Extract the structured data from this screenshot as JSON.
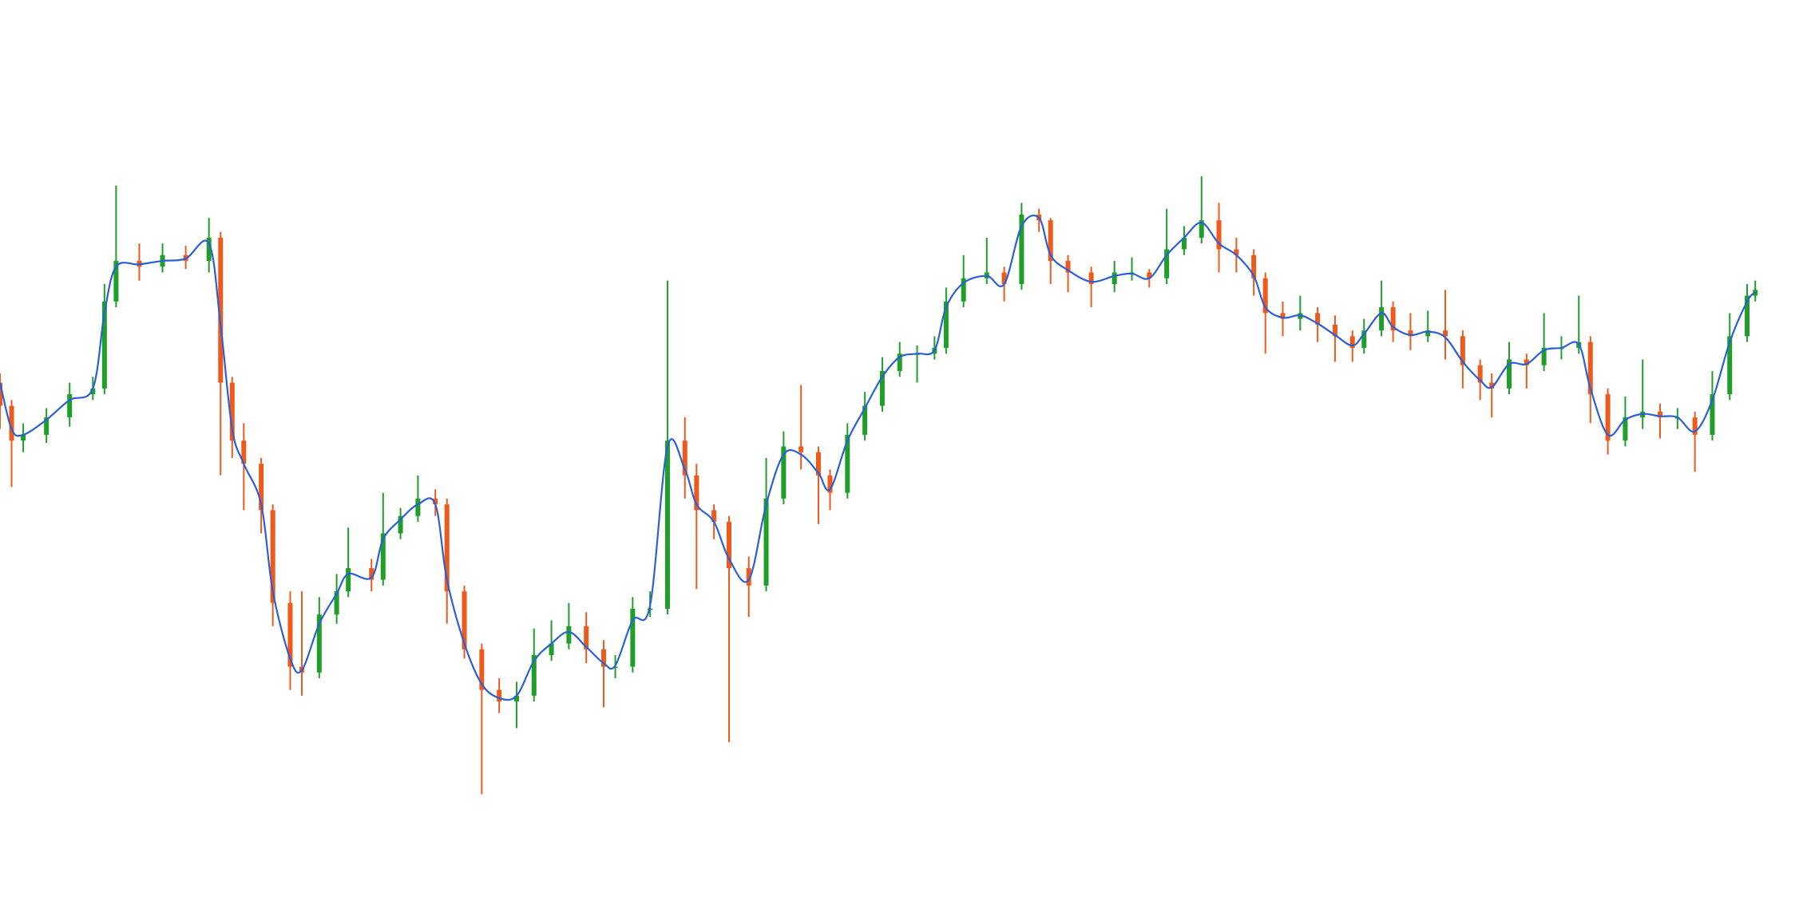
{
  "chart_data": {
    "type": "candlestick",
    "x": [
      0,
      10,
      20,
      40,
      60,
      80,
      90,
      100,
      120,
      140,
      160,
      180,
      190,
      200,
      210,
      225,
      235,
      250,
      260,
      275,
      290,
      300,
      320,
      330,
      345,
      360,
      375,
      385,
      400,
      415,
      430,
      445,
      460,
      475,
      490,
      505,
      520,
      530,
      545,
      560,
      575,
      590,
      600,
      615,
      628,
      645,
      660,
      675,
      690,
      705,
      715,
      730,
      745,
      760,
      775,
      790,
      805,
      815,
      830,
      850,
      865,
      880,
      895,
      905,
      920,
      940,
      960,
      975,
      990,
      1005,
      1020,
      1035,
      1050,
      1065,
      1080,
      1090,
      1105,
      1120,
      1135,
      1150,
      1165,
      1175,
      1190,
      1200,
      1215,
      1230,
      1245,
      1260,
      1275,
      1285,
      1300,
      1315,
      1330,
      1345,
      1360,
      1370,
      1385,
      1400,
      1415,
      1430,
      1445,
      1460,
      1475,
      1490,
      1505,
      1512
    ],
    "open": [
      470,
      450,
      420,
      425,
      440,
      460,
      465,
      540,
      575,
      570,
      580,
      575,
      595,
      470,
      420,
      400,
      360,
      280,
      225,
      220,
      270,
      290,
      310,
      300,
      340,
      355,
      370,
      365,
      290,
      240,
      205,
      195,
      200,
      235,
      245,
      260,
      240,
      225,
      225,
      275,
      275,
      420,
      390,
      360,
      350,
      310,
      295,
      370,
      415,
      410,
      390,
      375,
      425,
      450,
      480,
      495,
      495,
      500,
      540,
      560,
      565,
      555,
      615,
      610,
      575,
      565,
      555,
      565,
      565,
      560,
      585,
      595,
      610,
      585,
      580,
      560,
      530,
      525,
      530,
      520,
      510,
      500,
      515,
      535,
      515,
      510,
      515,
      510,
      485,
      470,
      465,
      490,
      485,
      500,
      500,
      505,
      460,
      420,
      440,
      445,
      440,
      440,
      425,
      460,
      510,
      545
    ],
    "high": [
      478,
      455,
      435,
      448,
      470,
      475,
      555,
      640,
      590,
      590,
      588,
      612,
      600,
      475,
      435,
      405,
      365,
      290,
      290,
      285,
      305,
      345,
      318,
      375,
      362,
      390,
      378,
      370,
      295,
      245,
      215,
      212,
      258,
      265,
      280,
      272,
      248,
      235,
      285,
      290,
      558,
      440,
      400,
      365,
      355,
      320,
      405,
      428,
      468,
      415,
      395,
      435,
      462,
      492,
      505,
      502,
      510,
      552,
      580,
      595,
      570,
      625,
      620,
      612,
      580,
      570,
      575,
      578,
      568,
      620,
      605,
      648,
      625,
      595,
      585,
      565,
      540,
      545,
      535,
      528,
      515,
      525,
      558,
      540,
      530,
      532,
      550,
      515,
      490,
      478,
      505,
      495,
      530,
      510,
      545,
      510,
      465,
      458,
      490,
      452,
      448,
      445,
      480,
      530,
      555,
      558
    ],
    "low": [
      430,
      380,
      410,
      418,
      432,
      455,
      460,
      535,
      558,
      565,
      568,
      565,
      390,
      405,
      360,
      340,
      260,
      205,
      200,
      215,
      262,
      285,
      290,
      295,
      335,
      350,
      355,
      262,
      232,
      115,
      185,
      172,
      195,
      230,
      240,
      228,
      190,
      215,
      220,
      268,
      270,
      370,
      292,
      335,
      160,
      268,
      290,
      365,
      395,
      348,
      360,
      370,
      420,
      445,
      475,
      470,
      490,
      495,
      535,
      555,
      540,
      550,
      600,
      555,
      548,
      535,
      548,
      558,
      552,
      555,
      580,
      590,
      565,
      565,
      545,
      495,
      510,
      515,
      505,
      488,
      488,
      495,
      510,
      505,
      498,
      505,
      490,
      465,
      455,
      440,
      460,
      465,
      480,
      490,
      495,
      435,
      408,
      415,
      430,
      422,
      430,
      393,
      420,
      455,
      505,
      540
    ],
    "close": [
      450,
      420,
      425,
      440,
      460,
      465,
      540,
      575,
      570,
      580,
      575,
      595,
      470,
      420,
      400,
      360,
      280,
      225,
      220,
      270,
      290,
      310,
      300,
      340,
      355,
      370,
      365,
      290,
      240,
      205,
      195,
      200,
      235,
      245,
      260,
      240,
      225,
      225,
      275,
      275,
      420,
      390,
      360,
      350,
      310,
      295,
      370,
      415,
      410,
      390,
      375,
      425,
      450,
      480,
      495,
      495,
      500,
      540,
      560,
      565,
      555,
      615,
      610,
      575,
      565,
      555,
      565,
      565,
      560,
      585,
      595,
      610,
      585,
      580,
      560,
      530,
      525,
      530,
      520,
      510,
      500,
      515,
      535,
      515,
      510,
      515,
      510,
      485,
      470,
      465,
      490,
      485,
      500,
      500,
      505,
      460,
      420,
      440,
      445,
      440,
      440,
      425,
      460,
      510,
      545,
      550
    ],
    "up_color": "#1f9e2a",
    "down_color": "#ee5a1c",
    "line": {
      "color": "#2b5fd9",
      "values": [
        470,
        430,
        425,
        438,
        455,
        465,
        530,
        570,
        572,
        575,
        577,
        590,
        520,
        430,
        400,
        365,
        290,
        232,
        222,
        262,
        288,
        305,
        302,
        335,
        352,
        365,
        365,
        300,
        245,
        210,
        198,
        200,
        230,
        245,
        255,
        242,
        228,
        226,
        265,
        278,
        415,
        395,
        365,
        350,
        318,
        300,
        365,
        408,
        408,
        392,
        378,
        420,
        448,
        475,
        492,
        495,
        498,
        535,
        556,
        562,
        555,
        605,
        612,
        580,
        567,
        557,
        562,
        564,
        560,
        580,
        595,
        608,
        590,
        580,
        562,
        535,
        526,
        528,
        521,
        511,
        502,
        512,
        530,
        518,
        511,
        514,
        509,
        488,
        472,
        466,
        486,
        486,
        498,
        500,
        503,
        465,
        425,
        438,
        443,
        441,
        440,
        428,
        455,
        505,
        540,
        548
      ]
    },
    "xlim": [
      0,
      1560
    ],
    "ylim": [
      10,
      800
    ]
  }
}
